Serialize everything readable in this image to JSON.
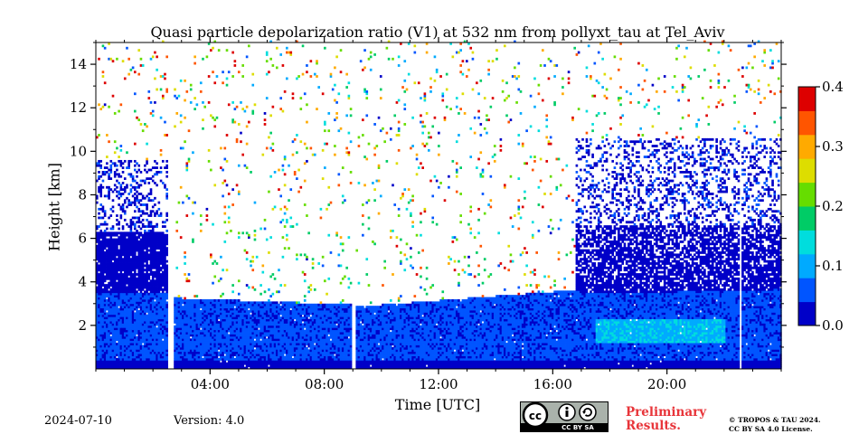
{
  "chart_data": {
    "type": "heatmap",
    "title": "Quasi particle depolarization ratio (V1) at 532 nm from pollyxt_tau at Tel_Aviv",
    "xlabel": "Time [UTC]",
    "ylabel": "Height [km]",
    "x_unit": "hours UTC",
    "xlim": [
      0.0,
      24.0
    ],
    "ylim": [
      0.0,
      15.0
    ],
    "xticks": [
      4,
      8,
      12,
      16,
      20
    ],
    "xtick_labels": [
      "04:00",
      "08:00",
      "12:00",
      "16:00",
      "20:00"
    ],
    "yticks": [
      2,
      4,
      6,
      8,
      10,
      12,
      14
    ],
    "ytick_labels": [
      "2",
      "4",
      "6",
      "8",
      "10",
      "12",
      "14"
    ],
    "colorbar": {
      "min": 0.0,
      "max": 0.4,
      "ticks": [
        "0.0",
        "0.1",
        "0.2",
        "0.3",
        "0.4"
      ],
      "colormap": [
        "#0000c8",
        "#0055ff",
        "#00aaff",
        "#00dddd",
        "#00cc66",
        "#66dd00",
        "#dddd00",
        "#ffaa00",
        "#ff5500",
        "#dd0000"
      ]
    },
    "regions": [
      {
        "name": "boundary layer",
        "t_start": 0.0,
        "t_end": 24.0,
        "top_km": 3.2,
        "typical_value": 0.04
      },
      {
        "name": "elevated aerosol layer (early)",
        "t_start": 0.0,
        "t_end": 2.5,
        "bottom_km": 3.2,
        "top_km": 6.2,
        "typical_value": 0.02
      },
      {
        "name": "elevated aerosol layer (late)",
        "t_start": 16.8,
        "t_end": 24.0,
        "bottom_km": 3.2,
        "top_km": 6.5,
        "typical_value": 0.02
      },
      {
        "name": "enhanced depolarization near surface",
        "t_start": 17.5,
        "t_end": 22.0,
        "bottom_km": 1.2,
        "top_km": 2.2,
        "typical_value": 0.1
      }
    ],
    "data_gaps_utc": [
      [
        2.5,
        2.7
      ],
      [
        8.95,
        9.1
      ],
      [
        22.5,
        22.6
      ]
    ],
    "grid": false
  },
  "footer": {
    "date": "2024-07-10",
    "version": "Version: 4.0",
    "preliminary": "Preliminary Results.",
    "copyright_line1": "© TROPOS & TAU 2024.",
    "copyright_line2": "CC BY SA 4.0 License."
  },
  "badge": {
    "text": "CC BY SA",
    "icon": "creative-commons-icon",
    "colors": {
      "badge_bg": "#aab2ab",
      "badge_dark": "#000000",
      "badge_light": "#ffffff"
    }
  }
}
